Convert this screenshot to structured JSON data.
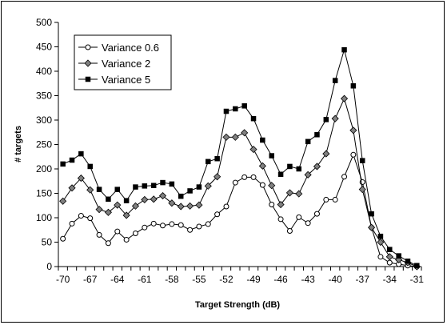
{
  "chart_data": {
    "type": "line",
    "xlabel": "Target Strength (dB)",
    "ylabel": "# targets",
    "xlim": [
      -70,
      -31
    ],
    "ylim": [
      0,
      500
    ],
    "yticks": [
      0,
      50,
      100,
      150,
      200,
      250,
      300,
      350,
      400,
      450,
      500
    ],
    "xticks": [
      -70,
      -67,
      -64,
      -61,
      -58,
      -55,
      -52,
      -49,
      -46,
      -43,
      -40,
      -37,
      -34,
      -31
    ],
    "grid": false,
    "legend_position": "top-left",
    "x": [
      -70,
      -69,
      -68,
      -67,
      -66,
      -65,
      -64,
      -63,
      -62,
      -61,
      -60,
      -59,
      -58,
      -57,
      -56,
      -55,
      -54,
      -53,
      -52,
      -51,
      -50,
      -49,
      -48,
      -47,
      -46,
      -45,
      -44,
      -43,
      -42,
      -41,
      -40,
      -39,
      -38,
      -37,
      -36,
      -35,
      -34,
      -33,
      -32,
      -31
    ],
    "series": [
      {
        "name": "Variance 0.6",
        "marker": "circle-open",
        "values": [
          57,
          88,
          104,
          99,
          65,
          48,
          72,
          55,
          68,
          80,
          88,
          84,
          87,
          85,
          75,
          82,
          87,
          107,
          123,
          172,
          183,
          183,
          167,
          127,
          97,
          73,
          101,
          89,
          108,
          137,
          137,
          184,
          229,
          173,
          80,
          20,
          8,
          5,
          2,
          0
        ]
      },
      {
        "name": "Variance 2",
        "marker": "diamond-gray",
        "values": [
          134,
          161,
          181,
          157,
          117,
          111,
          126,
          105,
          124,
          137,
          138,
          145,
          130,
          123,
          124,
          126,
          165,
          184,
          265,
          265,
          274,
          240,
          206,
          166,
          127,
          151,
          149,
          188,
          205,
          231,
          303,
          344,
          279,
          158,
          80,
          50,
          20,
          14,
          8,
          0
        ]
      },
      {
        "name": "Variance 5",
        "marker": "square-filled",
        "values": [
          210,
          218,
          231,
          205,
          158,
          138,
          158,
          135,
          163,
          165,
          166,
          172,
          169,
          144,
          155,
          163,
          215,
          221,
          318,
          323,
          329,
          303,
          259,
          227,
          189,
          205,
          200,
          256,
          270,
          301,
          381,
          444,
          370,
          217,
          108,
          62,
          35,
          22,
          11,
          2
        ]
      }
    ]
  }
}
